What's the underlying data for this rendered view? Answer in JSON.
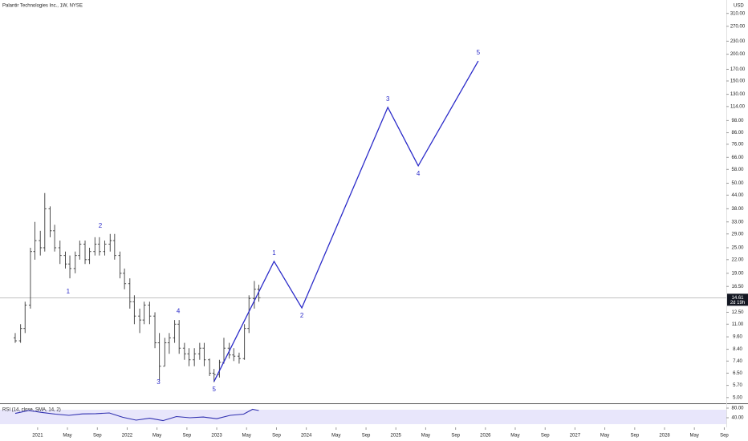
{
  "header": {
    "title": "Palantir Technologies Inc., 1W, NYSE"
  },
  "chart_data": [
    {
      "type": "ohlc",
      "currency": "USD",
      "log_scale": true,
      "xlim": [
        2020.58,
        2028.69
      ],
      "ylim": [
        4.7,
        358
      ],
      "xticks": [
        2021,
        {
          "value": 2021.333,
          "label": "May"
        },
        {
          "value": 2021.667,
          "label": "Sep"
        },
        2022,
        {
          "value": 2022.333,
          "label": "May"
        },
        {
          "value": 2022.667,
          "label": "Sep"
        },
        2023,
        {
          "value": 2023.333,
          "label": "May"
        },
        {
          "value": 2023.667,
          "label": "Sep"
        },
        2024,
        {
          "value": 2024.333,
          "label": "May"
        },
        {
          "value": 2024.667,
          "label": "Sep"
        },
        2025,
        {
          "value": 2025.333,
          "label": "May"
        },
        {
          "value": 2025.667,
          "label": "Sep"
        },
        2026,
        {
          "value": 2026.333,
          "label": "May"
        },
        {
          "value": 2026.667,
          "label": "Sep"
        },
        2027,
        {
          "value": 2027.333,
          "label": "May"
        },
        {
          "value": 2027.667,
          "label": "Sep"
        },
        2028,
        {
          "value": 2028.333,
          "label": "May"
        },
        {
          "value": 2028.667,
          "label": "Sep"
        }
      ],
      "yticks": [
        {
          "value": 310,
          "label": "310.00"
        },
        {
          "value": 270,
          "label": "270.00"
        },
        {
          "value": 230,
          "label": "230.00"
        },
        {
          "value": 200,
          "label": "200.00"
        },
        {
          "value": 170,
          "label": "170.00"
        },
        {
          "value": 150,
          "label": "150.00"
        },
        {
          "value": 130,
          "label": "130.00"
        },
        {
          "value": 114,
          "label": "114.00"
        },
        {
          "value": 98,
          "label": "98.00"
        },
        {
          "value": 86,
          "label": "86.00"
        },
        {
          "value": 76,
          "label": "76.00"
        },
        {
          "value": 66,
          "label": "66.00"
        },
        {
          "value": 58,
          "label": "58.00"
        },
        {
          "value": 50,
          "label": "50.00"
        },
        {
          "value": 44,
          "label": "44.00"
        },
        {
          "value": 38,
          "label": "38.00"
        },
        {
          "value": 33,
          "label": "33.00"
        },
        {
          "value": 29,
          "label": "29.00"
        },
        {
          "value": 25,
          "label": "25.00"
        },
        {
          "value": 22,
          "label": "22.00"
        },
        {
          "value": 19,
          "label": "19.00"
        },
        {
          "value": 16.5,
          "label": "16.50"
        },
        {
          "value": 12.5,
          "label": "12.50"
        },
        {
          "value": 11,
          "label": "11.00"
        },
        {
          "value": 9.6,
          "label": "9.60"
        },
        {
          "value": 8.4,
          "label": "8.40"
        },
        {
          "value": 7.4,
          "label": "7.40"
        },
        {
          "value": 6.5,
          "label": "6.50"
        },
        {
          "value": 5.7,
          "label": "5.70"
        },
        {
          "value": 5,
          "label": "5.00"
        }
      ],
      "last_price": {
        "value": 14.61,
        "label": "14.61"
      },
      "countdown": "2d 19h",
      "ohlc": {
        "color": "#3a3a3a",
        "x": [
          2020.75,
          2020.81,
          2020.86,
          2020.92,
          2020.97,
          2021.03,
          2021.08,
          2021.14,
          2021.19,
          2021.25,
          2021.31,
          2021.36,
          2021.42,
          2021.47,
          2021.53,
          2021.58,
          2021.64,
          2021.69,
          2021.75,
          2021.81,
          2021.86,
          2021.92,
          2021.97,
          2022.03,
          2022.08,
          2022.14,
          2022.19,
          2022.25,
          2022.31,
          2022.36,
          2022.42,
          2022.47,
          2022.53,
          2022.58,
          2022.64,
          2022.69,
          2022.75,
          2022.81,
          2022.86,
          2022.92,
          2022.97,
          2023.03,
          2023.08,
          2023.14,
          2023.19,
          2023.25,
          2023.31,
          2023.36,
          2023.42,
          2023.47
        ],
        "open": [
          9.5,
          9.2,
          10.5,
          13.5,
          24,
          27,
          25,
          38,
          30,
          25,
          23,
          21,
          20,
          23,
          26,
          22,
          24,
          26,
          24,
          26,
          27,
          23,
          19,
          17,
          14,
          12,
          11.5,
          13.5,
          12,
          9,
          7,
          9,
          9.5,
          11,
          8.5,
          8,
          7.5,
          8,
          8.5,
          7.5,
          6.5,
          6.4,
          7.3,
          8.5,
          7.9,
          7.8,
          7.6,
          10.5,
          14.5,
          16
        ],
        "high": [
          10,
          11,
          14,
          25,
          33,
          30,
          45,
          39,
          32,
          27,
          24,
          23,
          24,
          27,
          27,
          25,
          28,
          28,
          27,
          29,
          29,
          24,
          20,
          18,
          15,
          13,
          14,
          14,
          12.5,
          10,
          9.5,
          10,
          11.5,
          11.5,
          9,
          8.5,
          8.5,
          9,
          9,
          7.6,
          6.8,
          7.5,
          9.5,
          9,
          8.5,
          8.1,
          11,
          15,
          17.5,
          16.8
        ],
        "low": [
          9,
          9,
          10,
          13,
          22,
          23,
          24,
          28,
          24,
          21,
          20,
          18,
          19,
          22,
          21,
          21,
          23,
          23,
          23,
          24,
          22,
          18,
          16,
          13,
          11,
          10,
          11,
          11,
          8.5,
          6,
          7,
          8,
          9,
          8,
          7.5,
          7,
          7,
          7.5,
          7,
          6.3,
          5.9,
          6.2,
          7.2,
          7.6,
          7.4,
          7.2,
          7.5,
          10,
          13,
          14
        ],
        "close": [
          9.2,
          10.5,
          13.5,
          24,
          27,
          25,
          38,
          30,
          25,
          23,
          21,
          20,
          23,
          26,
          22,
          24,
          26,
          24,
          26,
          27,
          23,
          19,
          17,
          14,
          12,
          11.5,
          13.5,
          12,
          9,
          7,
          9,
          9.5,
          11,
          8.5,
          8,
          7.5,
          8,
          8.5,
          7.5,
          6.5,
          6.4,
          7.3,
          8.5,
          7.9,
          7.8,
          7.6,
          10.5,
          14.5,
          16,
          14.61
        ]
      },
      "wave_labels": [
        {
          "label": "1",
          "x": 2021.34,
          "y": 15.6
        },
        {
          "label": "2",
          "x": 2021.7,
          "y": 31.6
        },
        {
          "label": "3",
          "x": 2022.35,
          "y": 5.89
        },
        {
          "label": "4",
          "x": 2022.57,
          "y": 12.6
        },
        {
          "label": "5",
          "x": 2022.97,
          "y": 5.45
        }
      ],
      "projection": {
        "color": "#2b2bc9",
        "x": [
          2022.97,
          2023.64,
          2023.95,
          2024.91,
          2025.25,
          2025.92
        ],
        "values": [
          5.94,
          21.6,
          13.1,
          113,
          60.3,
          186
        ],
        "value_labels": [
          null,
          "1",
          "2",
          "3",
          "4",
          "5"
        ]
      }
    },
    {
      "type": "line",
      "title": "RSI (14, close, SMA, 14, 2)",
      "ylim": [
        0,
        100
      ],
      "yticks": [
        {
          "value": 80,
          "label": "80.00"
        },
        {
          "value": 40,
          "label": "40.00"
        }
      ],
      "color": "#3030b0",
      "x": [
        2020.75,
        2020.9,
        2021.05,
        2021.2,
        2021.35,
        2021.5,
        2021.65,
        2021.8,
        2021.95,
        2022.1,
        2022.25,
        2022.4,
        2022.55,
        2022.7,
        2022.85,
        2023.0,
        2023.15,
        2023.3,
        2023.4,
        2023.47
      ],
      "values": [
        58,
        70,
        62,
        55,
        50,
        56,
        57,
        60,
        42,
        30,
        38,
        28,
        45,
        40,
        43,
        36,
        50,
        55,
        75,
        70
      ]
    }
  ]
}
